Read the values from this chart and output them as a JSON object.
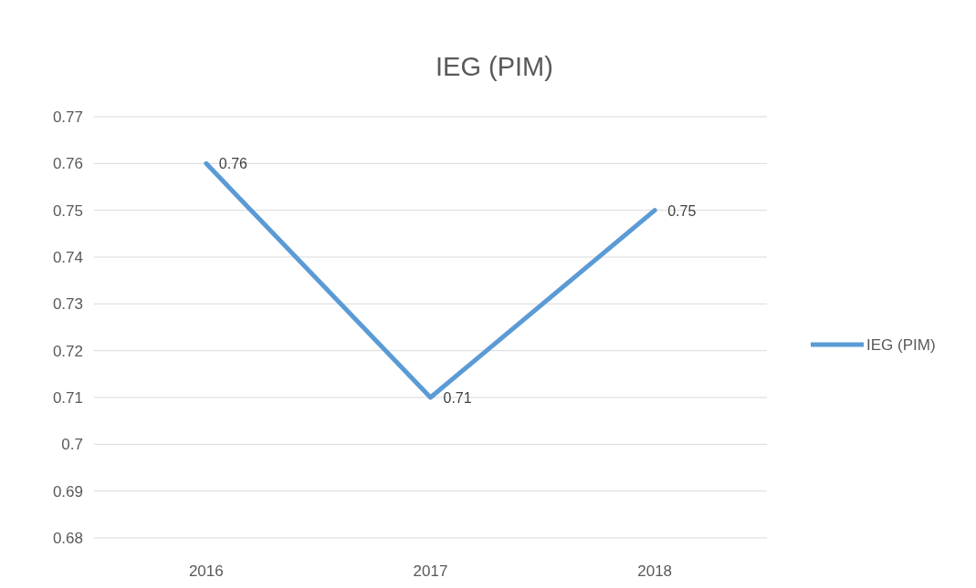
{
  "chart_data": {
    "type": "line",
    "title": "IEG (PIM)",
    "categories": [
      "2016",
      "2017",
      "2018"
    ],
    "series": [
      {
        "name": "IEG (PIM)",
        "color": "#5b9bd5",
        "values": [
          0.76,
          0.71,
          0.75
        ]
      }
    ],
    "ylim": [
      0.68,
      0.77
    ],
    "yticks": [
      0.68,
      0.69,
      0.7,
      0.71,
      0.72,
      0.73,
      0.74,
      0.75,
      0.76,
      0.77
    ],
    "grid": "y",
    "legend": "right",
    "data_labels": true,
    "marker": "none",
    "line_style": "solid"
  }
}
